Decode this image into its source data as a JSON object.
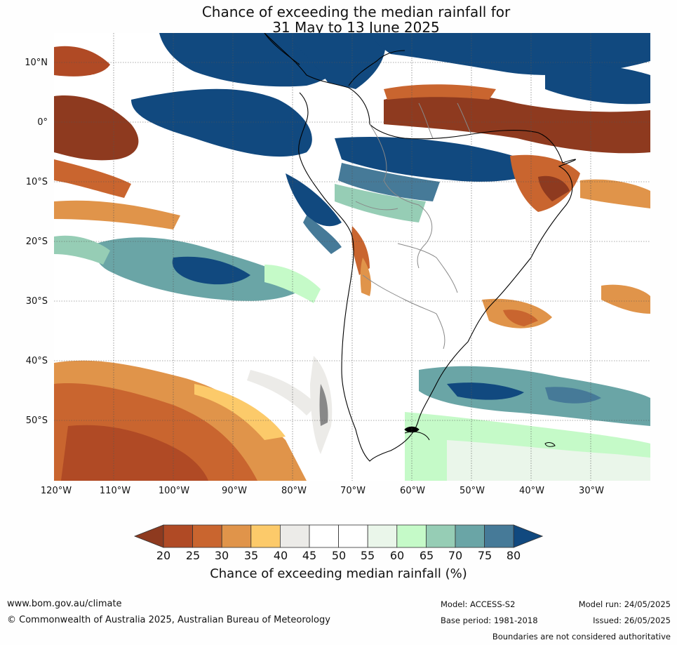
{
  "title": {
    "line1": "Chance of exceeding the median rainfall for",
    "line2": "31 May to 13 June 2025"
  },
  "map": {
    "lat_labels": [
      "10°N",
      "0°",
      "10°S",
      "20°S",
      "30°S",
      "40°S",
      "50°S"
    ],
    "lon_labels": [
      "120°W",
      "110°W",
      "100°W",
      "90°W",
      "80°W",
      "70°W",
      "60°W",
      "50°W",
      "40°W",
      "30°W"
    ],
    "extent": {
      "lon_min": -120,
      "lon_max": -20,
      "lat_min": -60,
      "lat_max": 15
    },
    "background_color": "#ffffff",
    "gridline_color": "#555555",
    "coastline_color": "#000000",
    "border_color": "#888888"
  },
  "colorbar": {
    "label": "Chance of exceeding median rainfall (%)",
    "ticks": [
      "20",
      "25",
      "30",
      "35",
      "40",
      "45",
      "50",
      "55",
      "60",
      "65",
      "70",
      "75",
      "80"
    ],
    "bins": [
      {
        "range": "<20",
        "color": "#8e3a1f"
      },
      {
        "range": "20-25",
        "color": "#b04a25"
      },
      {
        "range": "25-30",
        "color": "#c9652f"
      },
      {
        "range": "30-35",
        "color": "#e0944a"
      },
      {
        "range": "35-40",
        "color": "#fcca6a"
      },
      {
        "range": "40-45",
        "color": "#ecebe8"
      },
      {
        "range": "45-50",
        "color": "#ffffff"
      },
      {
        "range": "50-55",
        "color": "#ffffff"
      },
      {
        "range": "55-60",
        "color": "#eaf6ea"
      },
      {
        "range": "60-65",
        "color": "#c5fac8"
      },
      {
        "range": "65-70",
        "color": "#96cdb5"
      },
      {
        "range": "70-75",
        "color": "#6aa5a6"
      },
      {
        "range": "75-80",
        "color": "#467a98"
      },
      {
        "range": ">80",
        "color": "#11497f"
      }
    ]
  },
  "footer": {
    "website": "www.bom.gov.au/climate",
    "copyright": "© Commonwealth of Australia 2025, Australian Bureau of Meteorology",
    "model": "Model: ACCESS-S2",
    "base_period": "Base period: 1981-2018",
    "model_run": "Model run: 24/05/2025",
    "issued": "Issued: 26/05/2025",
    "disclaimer": "Boundaries are not considered authoritative"
  }
}
